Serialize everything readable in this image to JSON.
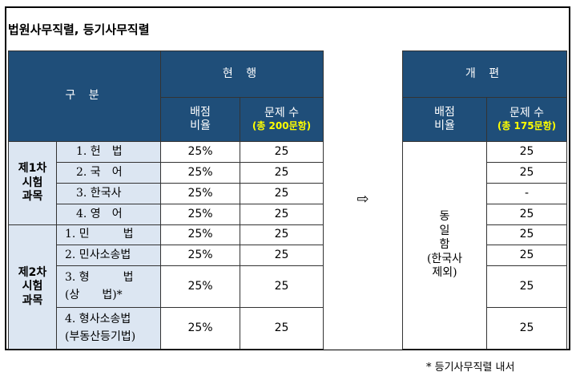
{
  "title": "법원사무직렬, 등기사무직렬",
  "header": {
    "gubun": "구 분",
    "current": "현 행",
    "revised": "개 편",
    "ratio_line1": "배점",
    "ratio_line2": "비율",
    "count_label": "문제 수",
    "current_total": "(총 200문항)",
    "revised_total": "(총 175문항)"
  },
  "sections": {
    "first": [
      "제1차",
      "시험",
      "과목"
    ],
    "second": [
      "제2차",
      "시험",
      "과목"
    ]
  },
  "rows": [
    {
      "subject": "1. 헌　법",
      "ratio": "25%",
      "count": "25",
      "new_count": "25"
    },
    {
      "subject": "2. 국　어",
      "ratio": "25%",
      "count": "25",
      "new_count": "25"
    },
    {
      "subject": "3. 한국사",
      "ratio": "25%",
      "count": "25",
      "new_count": "-"
    },
    {
      "subject": "4. 영　어",
      "ratio": "25%",
      "count": "25",
      "new_count": "25"
    },
    {
      "subject": "1. 민　　　법",
      "ratio": "25%",
      "count": "25",
      "new_count": "25"
    },
    {
      "subject": "2. 민사소송법",
      "ratio": "25%",
      "count": "25",
      "new_count": "25"
    },
    {
      "subject": "3. 형　　　법",
      "subject2": "(상　　법)*",
      "ratio": "25%",
      "count": "25",
      "new_count": "25"
    },
    {
      "subject": "4. 형사소송법",
      "subject2": "(부동산등기법)",
      "ratio": "25%",
      "count": "25",
      "new_count": "25"
    }
  ],
  "arrow": "⇨",
  "same_ratio": [
    "동",
    "일",
    "함",
    "(한국사",
    "제외)"
  ],
  "footnote": "* 등기사무직렬 내서"
}
